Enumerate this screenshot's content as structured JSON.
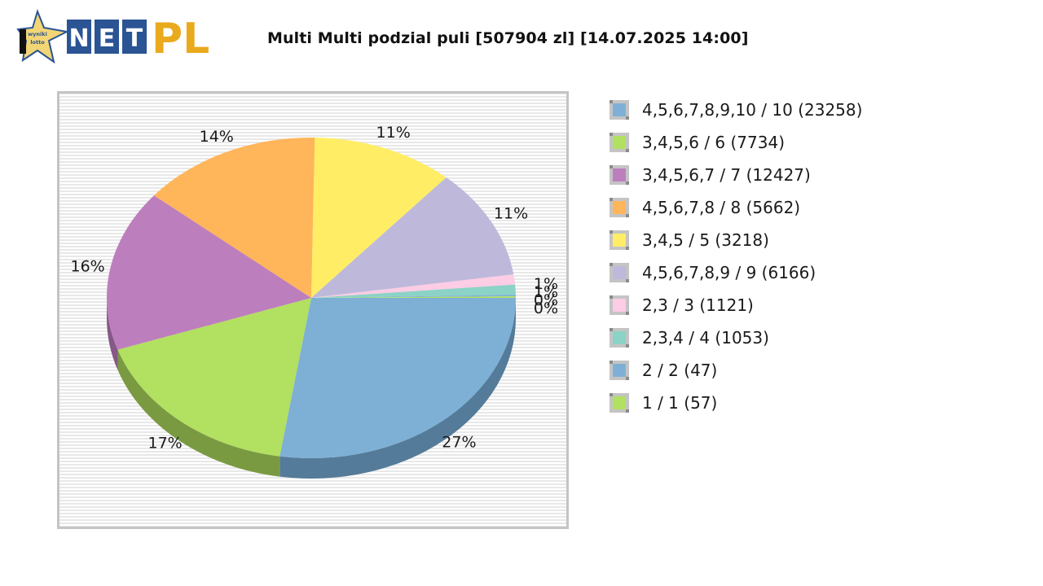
{
  "header": {
    "logo": {
      "star_text_line1": "wyniki",
      "star_text_line2": "lotto",
      "letters": [
        "N",
        "E",
        "T"
      ],
      "suffix": "PL"
    },
    "title": "Multi Multi podzial puli [507904 zl] [14.07.2025 14:00]"
  },
  "colors": {
    "logo_blue": "#2a5494",
    "logo_gold": "#eaaa1e",
    "star_fill": "#f2d675",
    "plot_border": "#c4c4c4",
    "stripe_light": "#ffffff",
    "stripe_dark": "#e8e8e8"
  },
  "chart_data": {
    "type": "pie",
    "style": "3d",
    "title": "Multi Multi podzial puli [507904 zl] [14.07.2025 14:00]",
    "start_angle": "3 o'clock, clockwise",
    "legend_position": "right",
    "slices": [
      {
        "label": "4,5,6,7,8,9,10 / 10 (23258)",
        "percent_label": "27%",
        "value": 27,
        "color": "#7eb0d5",
        "side": "#547b99"
      },
      {
        "label": "3,4,5,6 / 6 (7734)",
        "percent_label": "17%",
        "value": 17,
        "color": "#b2e061",
        "side": "#7a9a42"
      },
      {
        "label": "3,4,5,6,7 / 7 (12427)",
        "percent_label": "16%",
        "value": 16,
        "color": "#bd7ebe",
        "side": "#855888"
      },
      {
        "label": "4,5,6,7,8 / 8 (5662)",
        "percent_label": "14%",
        "value": 14,
        "color": "#ffb55a",
        "side": "#b38040"
      },
      {
        "label": "3,4,5 / 5 (3218)",
        "percent_label": "11%",
        "value": 11,
        "color": "#ffee65",
        "side": "#b3a747"
      },
      {
        "label": "4,5,6,7,8,9 / 9 (6166)",
        "percent_label": "11%",
        "value": 11,
        "color": "#beb9db",
        "side": "#85829a"
      },
      {
        "label": "2,3 / 3 (1121)",
        "percent_label": "1%",
        "value": 1,
        "color": "#fdcce5",
        "side": "#b18fa0"
      },
      {
        "label": "2,3,4 / 4 (1053)",
        "percent_label": "1%",
        "value": 1,
        "color": "#8bd3c7",
        "side": "#61948b"
      },
      {
        "label": "2 / 2 (47)",
        "percent_label": "0%",
        "value": 0.15,
        "color": "#7eb0d5",
        "side": "#547b99"
      },
      {
        "label": "1 / 1 (57)",
        "percent_label": "0%",
        "value": 0.15,
        "color": "#b2e061",
        "side": "#7a9a42"
      }
    ]
  },
  "legend": {
    "items": [
      {
        "label": "4,5,6,7,8,9,10 / 10 (23258)",
        "color": "#7eb0d5"
      },
      {
        "label": "3,4,5,6 / 6 (7734)",
        "color": "#b2e061"
      },
      {
        "label": "3,4,5,6,7 / 7 (12427)",
        "color": "#bd7ebe"
      },
      {
        "label": "4,5,6,7,8 / 8 (5662)",
        "color": "#ffb55a"
      },
      {
        "label": "3,4,5 / 5 (3218)",
        "color": "#ffee65"
      },
      {
        "label": "4,5,6,7,8,9 / 9 (6166)",
        "color": "#beb9db"
      },
      {
        "label": "2,3 / 3 (1121)",
        "color": "#fdcce5"
      },
      {
        "label": "2,3,4 / 4 (1053)",
        "color": "#8bd3c7"
      },
      {
        "label": "2 / 2 (47)",
        "color": "#7eb0d5"
      },
      {
        "label": "1 / 1 (57)",
        "color": "#b2e061"
      }
    ]
  }
}
